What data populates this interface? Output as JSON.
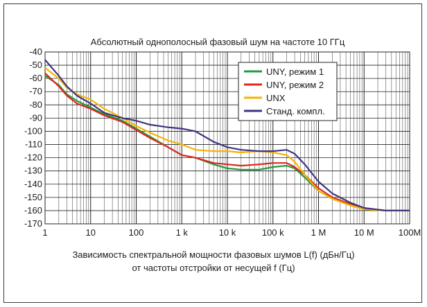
{
  "chart_data": {
    "type": "line",
    "title": "Абсолютный однополосный фазовый шум на частоте 10 ГГц",
    "xlabel_line1": "Зависимость спектральной мощности фазовых шумов L(f) (дБн/Гц)",
    "xlabel_line2": "от частоты отстройки от несущей f (Гц)",
    "ylabel": "",
    "x_scale": "log",
    "xlim": [
      1,
      100000000
    ],
    "ylim": [
      -170,
      -40
    ],
    "grid": true,
    "legend_position": "top-right",
    "x_ticks": [
      {
        "value": 1,
        "label": "1"
      },
      {
        "value": 10,
        "label": "10"
      },
      {
        "value": 100,
        "label": "100"
      },
      {
        "value": 1000,
        "label": "1 k"
      },
      {
        "value": 10000,
        "label": "10 k"
      },
      {
        "value": 100000,
        "label": "100 k"
      },
      {
        "value": 1000000,
        "label": "1 M"
      },
      {
        "value": 10000000,
        "label": "10 M"
      },
      {
        "value": 100000000,
        "label": "100M"
      }
    ],
    "y_ticks": [
      -40,
      -50,
      -60,
      -70,
      -80,
      -90,
      -100,
      -110,
      -120,
      -130,
      -140,
      -150,
      -160,
      -170
    ],
    "series": [
      {
        "name": "UNY, режим 1",
        "color": "#1f9a3c",
        "points": [
          [
            1,
            -58
          ],
          [
            2,
            -65
          ],
          [
            3,
            -72
          ],
          [
            5,
            -77
          ],
          [
            10,
            -82
          ],
          [
            20,
            -87
          ],
          [
            50,
            -92
          ],
          [
            100,
            -98
          ],
          [
            200,
            -104
          ],
          [
            500,
            -112
          ],
          [
            1000,
            -118
          ],
          [
            2000,
            -120
          ],
          [
            5000,
            -125
          ],
          [
            10000,
            -128
          ],
          [
            20000,
            -129
          ],
          [
            50000,
            -129
          ],
          [
            100000,
            -127
          ],
          [
            200000,
            -126
          ],
          [
            300000,
            -128
          ],
          [
            500000,
            -135
          ],
          [
            1000000,
            -145
          ],
          [
            2000000,
            -151
          ],
          [
            5000000,
            -156
          ],
          [
            10000000,
            -159
          ],
          [
            30000000,
            -160
          ],
          [
            100000000,
            -160
          ]
        ]
      },
      {
        "name": "UNY, режим 2",
        "color": "#e0261d",
        "points": [
          [
            1,
            -56
          ],
          [
            2,
            -66
          ],
          [
            3,
            -73
          ],
          [
            5,
            -79
          ],
          [
            10,
            -83
          ],
          [
            20,
            -88
          ],
          [
            50,
            -93
          ],
          [
            100,
            -99
          ],
          [
            200,
            -105
          ],
          [
            500,
            -112
          ],
          [
            1000,
            -118
          ],
          [
            2000,
            -120
          ],
          [
            5000,
            -124
          ],
          [
            10000,
            -125
          ],
          [
            20000,
            -126
          ],
          [
            50000,
            -125
          ],
          [
            100000,
            -124
          ],
          [
            200000,
            -124
          ],
          [
            300000,
            -127
          ],
          [
            500000,
            -133
          ],
          [
            1000000,
            -143
          ],
          [
            2000000,
            -150
          ],
          [
            5000000,
            -155
          ],
          [
            10000000,
            -158
          ],
          [
            30000000,
            -160
          ],
          [
            100000000,
            -160
          ]
        ]
      },
      {
        "name": "UNX",
        "color": "#f5b400",
        "points": [
          [
            1,
            -52
          ],
          [
            2,
            -60
          ],
          [
            3,
            -67
          ],
          [
            5,
            -72
          ],
          [
            10,
            -76
          ],
          [
            20,
            -83
          ],
          [
            30,
            -86
          ],
          [
            50,
            -90
          ],
          [
            100,
            -96
          ],
          [
            200,
            -101
          ],
          [
            500,
            -107
          ],
          [
            1000,
            -110
          ],
          [
            2000,
            -114
          ],
          [
            5000,
            -115
          ],
          [
            10000,
            -115
          ],
          [
            20000,
            -116
          ],
          [
            50000,
            -115
          ],
          [
            100000,
            -116
          ],
          [
            200000,
            -118
          ],
          [
            300000,
            -123
          ],
          [
            500000,
            -133
          ],
          [
            1000000,
            -145
          ],
          [
            2000000,
            -151
          ],
          [
            5000000,
            -156
          ],
          [
            10000000,
            -159
          ],
          [
            30000000,
            -160
          ],
          [
            100000000,
            -160
          ]
        ]
      },
      {
        "name": "Станд. компл.",
        "color": "#3d3480",
        "points": [
          [
            1,
            -46
          ],
          [
            2,
            -58
          ],
          [
            3,
            -66
          ],
          [
            5,
            -73
          ],
          [
            10,
            -79
          ],
          [
            20,
            -86
          ],
          [
            50,
            -90
          ],
          [
            100,
            -92
          ],
          [
            200,
            -95
          ],
          [
            500,
            -97
          ],
          [
            1000,
            -98
          ],
          [
            2000,
            -100
          ],
          [
            5000,
            -108
          ],
          [
            10000,
            -112
          ],
          [
            20000,
            -114
          ],
          [
            50000,
            -115
          ],
          [
            100000,
            -115
          ],
          [
            200000,
            -114
          ],
          [
            300000,
            -117
          ],
          [
            500000,
            -125
          ],
          [
            1000000,
            -138
          ],
          [
            2000000,
            -147
          ],
          [
            5000000,
            -154
          ],
          [
            10000000,
            -158
          ],
          [
            30000000,
            -160
          ],
          [
            100000000,
            -160
          ]
        ]
      }
    ]
  }
}
